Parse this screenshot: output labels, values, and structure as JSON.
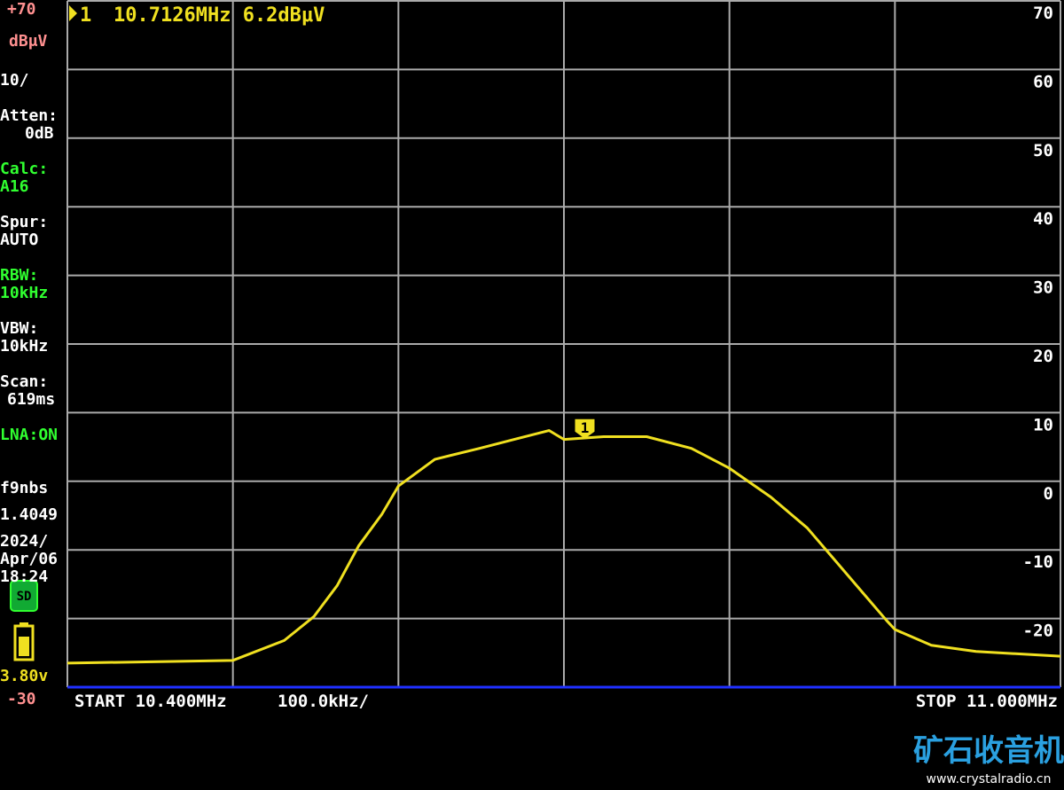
{
  "chart_data": {
    "type": "line",
    "marker": {
      "label": "1",
      "x": 10.7126,
      "value": 6.2,
      "text": "10.7126MHz 6.2dBμV"
    },
    "x": [
      10.4,
      10.5,
      10.531,
      10.549,
      10.563,
      10.576,
      10.59,
      10.6,
      10.622,
      10.649,
      10.67,
      10.691,
      10.7,
      10.724,
      10.75,
      10.777,
      10.8,
      10.825,
      10.847,
      10.863,
      10.879,
      10.895,
      10.9,
      10.922,
      10.949,
      11.0
    ],
    "series": [
      {
        "name": "trace",
        "color": "#f0e020",
        "values": [
          -26.5,
          -26.1,
          -23.2,
          -19.7,
          -15.2,
          -9.4,
          -4.8,
          -0.7,
          3.2,
          4.8,
          6.1,
          7.4,
          6.1,
          6.5,
          6.5,
          4.8,
          1.9,
          -2.3,
          -6.8,
          -11.3,
          -15.8,
          -20.3,
          -21.6,
          -23.9,
          -24.8,
          -25.5
        ]
      }
    ],
    "xlim": [
      10.4,
      11.0
    ],
    "ylim": [
      -30,
      70
    ],
    "yticks": [
      70,
      60,
      50,
      40,
      30,
      20,
      10,
      0,
      -10,
      -20
    ],
    "grid": true,
    "start_label": "START 10.400MHz",
    "div_label": "100.0kHz/",
    "stop_label": "STOP 11.000MHz"
  },
  "sidebar": [
    {
      "text": "+70",
      "color": "#ff9090"
    },
    {
      "text": "dBμV",
      "color": "#ff9090"
    },
    {
      "text": "10/",
      "color": "#ffffff"
    },
    {
      "text": "Atten:",
      "color": "#ffffff"
    },
    {
      "text": "0dB",
      "color": "#ffffff"
    },
    {
      "text": "Calc:",
      "color": "#30ff30"
    },
    {
      "text": "A16",
      "color": "#30ff30"
    },
    {
      "text": "Spur:",
      "color": "#ffffff"
    },
    {
      "text": "AUTO",
      "color": "#ffffff"
    },
    {
      "text": "RBW:",
      "color": "#30ff30"
    },
    {
      "text": "10kHz",
      "color": "#30ff30"
    },
    {
      "text": "VBW:",
      "color": "#ffffff"
    },
    {
      "text": "10kHz",
      "color": "#ffffff"
    },
    {
      "text": "Scan:",
      "color": "#ffffff"
    },
    {
      "text": "619ms",
      "color": "#ffffff"
    },
    {
      "text": "LNA:ON",
      "color": "#30ff30"
    },
    {
      "text": "f9nbs",
      "color": "#ffffff"
    },
    {
      "text": "1.4049",
      "color": "#ffffff"
    },
    {
      "text": "2024/",
      "color": "#ffffff"
    },
    {
      "text": "Apr/06",
      "color": "#ffffff"
    },
    {
      "text": "18:24",
      "color": "#ffffff"
    },
    {
      "text": "3.80v",
      "color": "#f0e020"
    },
    {
      "text": "-30",
      "color": "#ff9090"
    }
  ],
  "watermark": {
    "title": "矿石收音机",
    "url": "www.crystalradio.cn"
  }
}
